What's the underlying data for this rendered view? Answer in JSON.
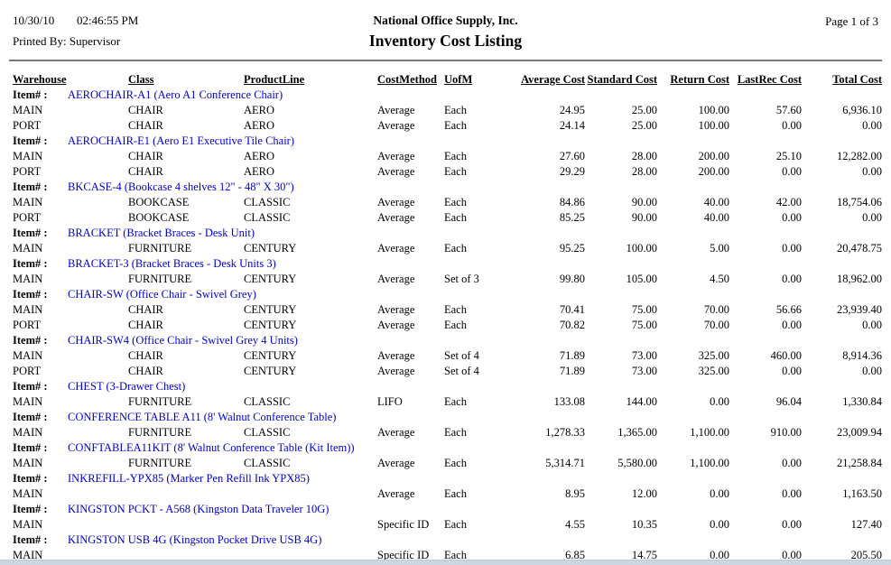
{
  "header": {
    "date": "10/30/10",
    "time": "02:46:55 PM",
    "printed_by": "Printed By: Supervisor",
    "company": "National Office Supply, Inc.",
    "report_title": "Inventory Cost Listing",
    "page": "Page 1 of 3"
  },
  "colors": {
    "item_link_blue": "#0000cc",
    "rule_grey": "#7a7a7a"
  },
  "table": {
    "columns": [
      "Warehouse",
      "Class",
      "ProductLine",
      "CostMethod",
      "UofM",
      "Average Cost",
      "Standard Cost",
      "Return Cost",
      "LastRec Cost",
      "Total Cost"
    ],
    "item_label": "Item# :",
    "groups": [
      {
        "item": "AEROCHAIR-A1 (Aero A1 Conference Chair)",
        "rows": [
          [
            "MAIN",
            "CHAIR",
            "AERO",
            "Average",
            "Each",
            "24.95",
            "25.00",
            "100.00",
            "57.60",
            "6,936.10"
          ],
          [
            "PORT",
            "CHAIR",
            "AERO",
            "Average",
            "Each",
            "24.14",
            "25.00",
            "100.00",
            "0.00",
            "0.00"
          ]
        ]
      },
      {
        "item": "AEROCHAIR-E1 (Aero E1 Executive Tile Chair)",
        "rows": [
          [
            "MAIN",
            "CHAIR",
            "AERO",
            "Average",
            "Each",
            "27.60",
            "28.00",
            "200.00",
            "25.10",
            "12,282.00"
          ],
          [
            "PORT",
            "CHAIR",
            "AERO",
            "Average",
            "Each",
            "29.29",
            "28.00",
            "200.00",
            "0.00",
            "0.00"
          ]
        ]
      },
      {
        "item": "BKCASE-4 (Bookcase 4 shelves 12\" - 48\" X 30\")",
        "rows": [
          [
            "MAIN",
            "BOOKCASE",
            "CLASSIC",
            "Average",
            "Each",
            "84.86",
            "90.00",
            "40.00",
            "42.00",
            "18,754.06"
          ],
          [
            "PORT",
            "BOOKCASE",
            "CLASSIC",
            "Average",
            "Each",
            "85.25",
            "90.00",
            "40.00",
            "0.00",
            "0.00"
          ]
        ]
      },
      {
        "item": "BRACKET (Bracket Braces - Desk Unit)",
        "rows": [
          [
            "MAIN",
            "FURNITURE",
            "CENTURY",
            "Average",
            "Each",
            "95.25",
            "100.00",
            "5.00",
            "0.00",
            "20,478.75"
          ]
        ]
      },
      {
        "item": "BRACKET-3 (Bracket Braces - Desk Units 3)",
        "rows": [
          [
            "MAIN",
            "FURNITURE",
            "CENTURY",
            "Average",
            "Set of 3",
            "99.80",
            "105.00",
            "4.50",
            "0.00",
            "18,962.00"
          ]
        ]
      },
      {
        "item": "CHAIR-SW (Office Chair - Swivel Grey)",
        "rows": [
          [
            "MAIN",
            "CHAIR",
            "CENTURY",
            "Average",
            "Each",
            "70.41",
            "75.00",
            "70.00",
            "56.66",
            "23,939.40"
          ],
          [
            "PORT",
            "CHAIR",
            "CENTURY",
            "Average",
            "Each",
            "70.82",
            "75.00",
            "70.00",
            "0.00",
            "0.00"
          ]
        ]
      },
      {
        "item": "CHAIR-SW4 (Office Chair - Swivel Grey 4 Units)",
        "rows": [
          [
            "MAIN",
            "CHAIR",
            "CENTURY",
            "Average",
            "Set of 4",
            "71.89",
            "73.00",
            "325.00",
            "460.00",
            "8,914.36"
          ],
          [
            "PORT",
            "CHAIR",
            "CENTURY",
            "Average",
            "Set of 4",
            "71.89",
            "73.00",
            "325.00",
            "0.00",
            "0.00"
          ]
        ]
      },
      {
        "item": "CHEST (3-Drawer Chest)",
        "rows": [
          [
            "MAIN",
            "FURNITURE",
            "CLASSIC",
            "LIFO",
            "Each",
            "133.08",
            "144.00",
            "0.00",
            "96.04",
            "1,330.84"
          ]
        ]
      },
      {
        "item": "CONFERENCE TABLE A11 (8' Walnut Conference Table)",
        "rows": [
          [
            "MAIN",
            "FURNITURE",
            "CLASSIC",
            "Average",
            "Each",
            "1,278.33",
            "1,365.00",
            "1,100.00",
            "910.00",
            "23,009.94"
          ]
        ]
      },
      {
        "item": "CONFTABLEA11KIT (8' Walnut Conference Table (Kit Item))",
        "rows": [
          [
            "MAIN",
            "FURNITURE",
            "CLASSIC",
            "Average",
            "Each",
            "5,314.71",
            "5,580.00",
            "1,100.00",
            "0.00",
            "21,258.84"
          ]
        ]
      },
      {
        "item": "INKREFILL-YPX85 (Marker Pen Refill Ink YPX85)",
        "rows": [
          [
            "MAIN",
            "",
            "",
            "Average",
            "Each",
            "8.95",
            "12.00",
            "0.00",
            "0.00",
            "1,163.50"
          ]
        ]
      },
      {
        "item": "KINGSTON PCKT - A568 (Kingston Data Traveler 10G)",
        "rows": [
          [
            "MAIN",
            "",
            "",
            "Specific ID",
            "Each",
            "4.55",
            "10.35",
            "0.00",
            "0.00",
            "127.40"
          ]
        ]
      },
      {
        "item": "KINGSTON USB 4G (Kingston Pocket Drive USB 4G)",
        "rows": [
          [
            "MAIN",
            "",
            "",
            "Specific ID",
            "Each",
            "6.85",
            "14.75",
            "0.00",
            "0.00",
            "205.50"
          ]
        ]
      }
    ]
  }
}
